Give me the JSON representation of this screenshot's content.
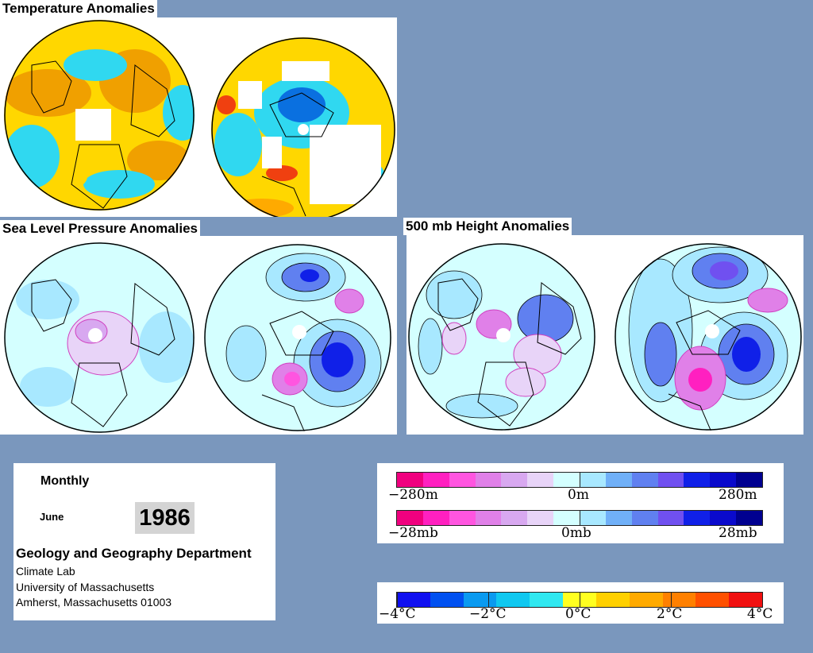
{
  "titles": {
    "temperature": "Temperature Anomalies",
    "slp": "Sea Level Pressure Anomalies",
    "height500": "500 mb Height Anomalies"
  },
  "info": {
    "period": "Monthly",
    "month": "June",
    "year": "1986",
    "department": "Geology and Geography Department",
    "lab": "Climate Lab",
    "university": "University of Massachusetts",
    "address": "Amherst, Massachusetts 01003"
  },
  "legends": {
    "height": {
      "labels": [
        "−280m",
        "0m",
        "280m"
      ]
    },
    "pressure": {
      "labels": [
        "−28mb",
        "0mb",
        "28mb"
      ]
    },
    "temperature": {
      "labels": [
        "−4°C",
        "−2°C",
        "0°C",
        "2°C",
        "4°C"
      ]
    }
  },
  "colors": {
    "background": "#7a97bd",
    "anomaly_scale": [
      "#f0007f",
      "#ff20c0",
      "#ff55e0",
      "#e080e8",
      "#d8a8f0",
      "#e8d4f8",
      "#d4ffff",
      "#a8e8ff",
      "#70b0f8",
      "#6080f0",
      "#7050f0",
      "#1020e8",
      "#0a0acc",
      "#000090"
    ],
    "temperature_scale": [
      "#1010f0",
      "#0050f0",
      "#0a9af0",
      "#10c8f0",
      "#30e8f0",
      "#ffff20",
      "#ffd000",
      "#ffaa00",
      "#ff8000",
      "#ff5000",
      "#f01010"
    ]
  }
}
